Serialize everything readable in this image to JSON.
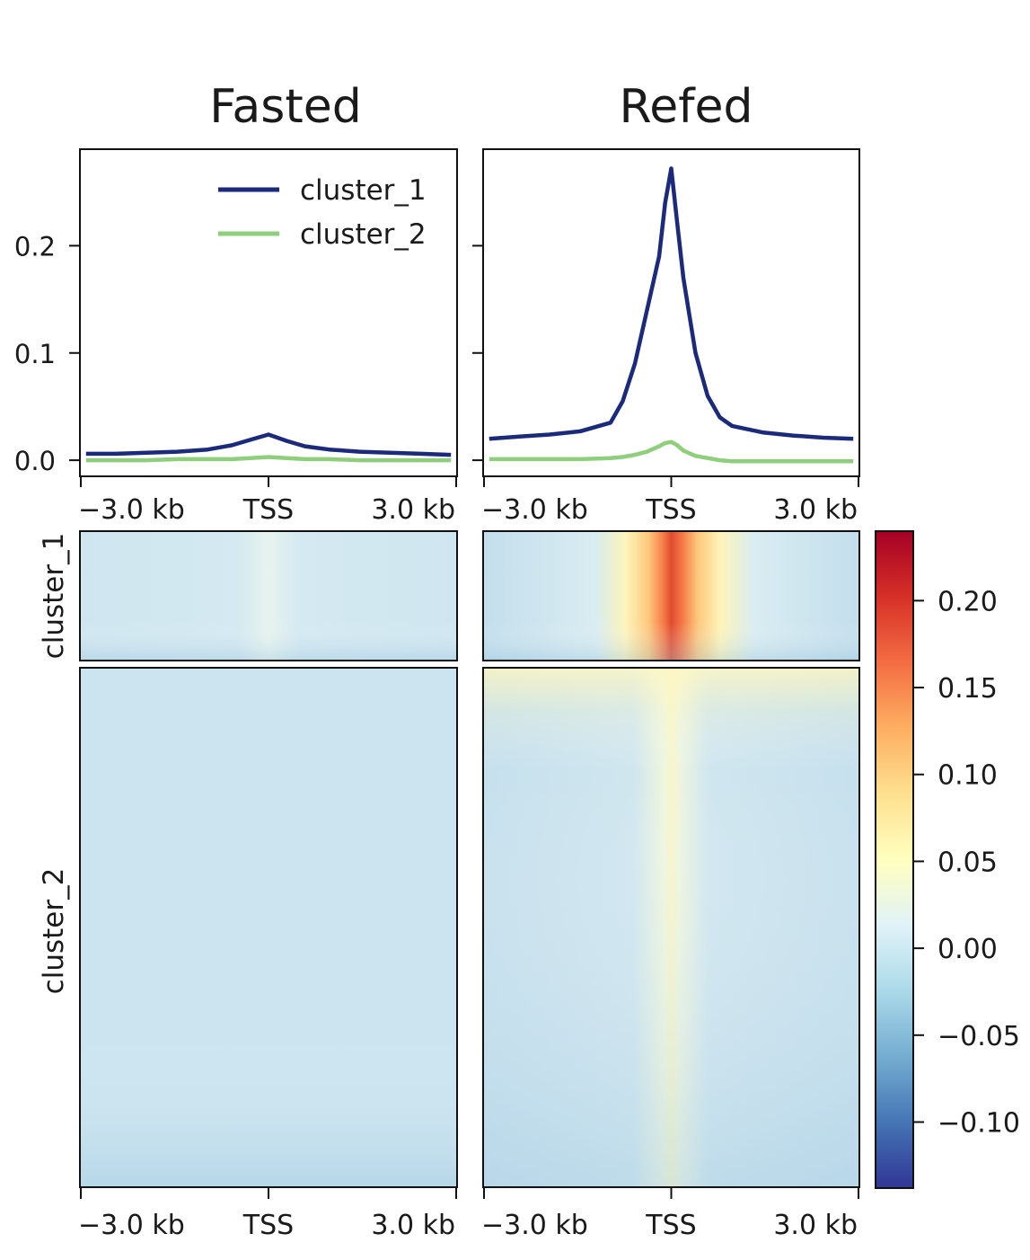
{
  "chart_data": {
    "type": "heatmap",
    "panels": [
      {
        "title": "Fasted",
        "profile": {
          "type": "line",
          "x": [
            -3.0,
            -2.5,
            -2.0,
            -1.5,
            -1.0,
            -0.6,
            -0.3,
            0.0,
            0.3,
            0.6,
            1.0,
            1.5,
            2.0,
            2.5,
            3.0
          ],
          "series": [
            {
              "name": "cluster_1",
              "color": "#1b2a7a",
              "values": [
                0.006,
                0.006,
                0.007,
                0.008,
                0.01,
                0.014,
                0.019,
                0.024,
                0.018,
                0.013,
                0.01,
                0.008,
                0.007,
                0.006,
                0.005
              ]
            },
            {
              "name": "cluster_2",
              "color": "#8fce7c",
              "values": [
                0.0,
                0.0,
                0.0,
                0.001,
                0.001,
                0.001,
                0.002,
                0.003,
                0.002,
                0.001,
                0.001,
                0.0,
                0.0,
                0.0,
                0.0
              ]
            }
          ]
        }
      },
      {
        "title": "Refed",
        "profile": {
          "type": "line",
          "x": [
            -3.0,
            -2.5,
            -2.0,
            -1.5,
            -1.0,
            -0.8,
            -0.6,
            -0.4,
            -0.2,
            -0.1,
            0.0,
            0.1,
            0.2,
            0.4,
            0.6,
            0.8,
            1.0,
            1.5,
            2.0,
            2.5,
            3.0
          ],
          "series": [
            {
              "name": "cluster_1",
              "color": "#1b2a7a",
              "values": [
                0.02,
                0.022,
                0.024,
                0.027,
                0.035,
                0.055,
                0.09,
                0.14,
                0.19,
                0.24,
                0.272,
                0.22,
                0.17,
                0.1,
                0.06,
                0.04,
                0.032,
                0.026,
                0.023,
                0.021,
                0.02
              ]
            },
            {
              "name": "cluster_2",
              "color": "#8fce7c",
              "values": [
                0.001,
                0.001,
                0.001,
                0.001,
                0.002,
                0.003,
                0.005,
                0.008,
                0.013,
                0.016,
                0.017,
                0.014,
                0.009,
                0.004,
                0.002,
                0.0,
                -0.001,
                -0.001,
                -0.001,
                -0.001,
                -0.001
              ]
            }
          ]
        }
      }
    ],
    "profile_yticks": [
      "0.0",
      "0.1",
      "0.2"
    ],
    "profile_ylim": [
      -0.015,
      0.29
    ],
    "profile_yvalues": [
      0.0,
      0.1,
      0.2
    ],
    "xticks": [
      "−3.0 kb",
      "TSS",
      "3.0 kb"
    ],
    "xtick_values": [
      -3.0,
      0.0,
      3.0
    ],
    "xlim": [
      -3.1,
      3.1
    ],
    "row_labels": [
      "cluster_1",
      "cluster_2"
    ],
    "heatmap_peak": {
      "Fasted": {
        "cluster_1": 0.02,
        "cluster_2": 0.0
      },
      "Refed": {
        "cluster_1": 0.22,
        "cluster_2": 0.045
      }
    },
    "heatmap_background": -0.02,
    "colorbar": {
      "ticks": [
        "0.20",
        "0.15",
        "0.10",
        "0.05",
        "0.00",
        "−0.05",
        "−0.10"
      ],
      "tick_values": [
        0.2,
        0.15,
        0.1,
        0.05,
        0.0,
        -0.05,
        -0.1
      ],
      "range": [
        -0.138,
        0.24
      ],
      "colormap": "RdYlBu_r",
      "stops": [
        "#313695",
        "#4575b4",
        "#74add1",
        "#abd9e9",
        "#e0f3f8",
        "#ffffbf",
        "#fee090",
        "#fdae61",
        "#f46d43",
        "#d73027",
        "#a50026"
      ]
    }
  }
}
